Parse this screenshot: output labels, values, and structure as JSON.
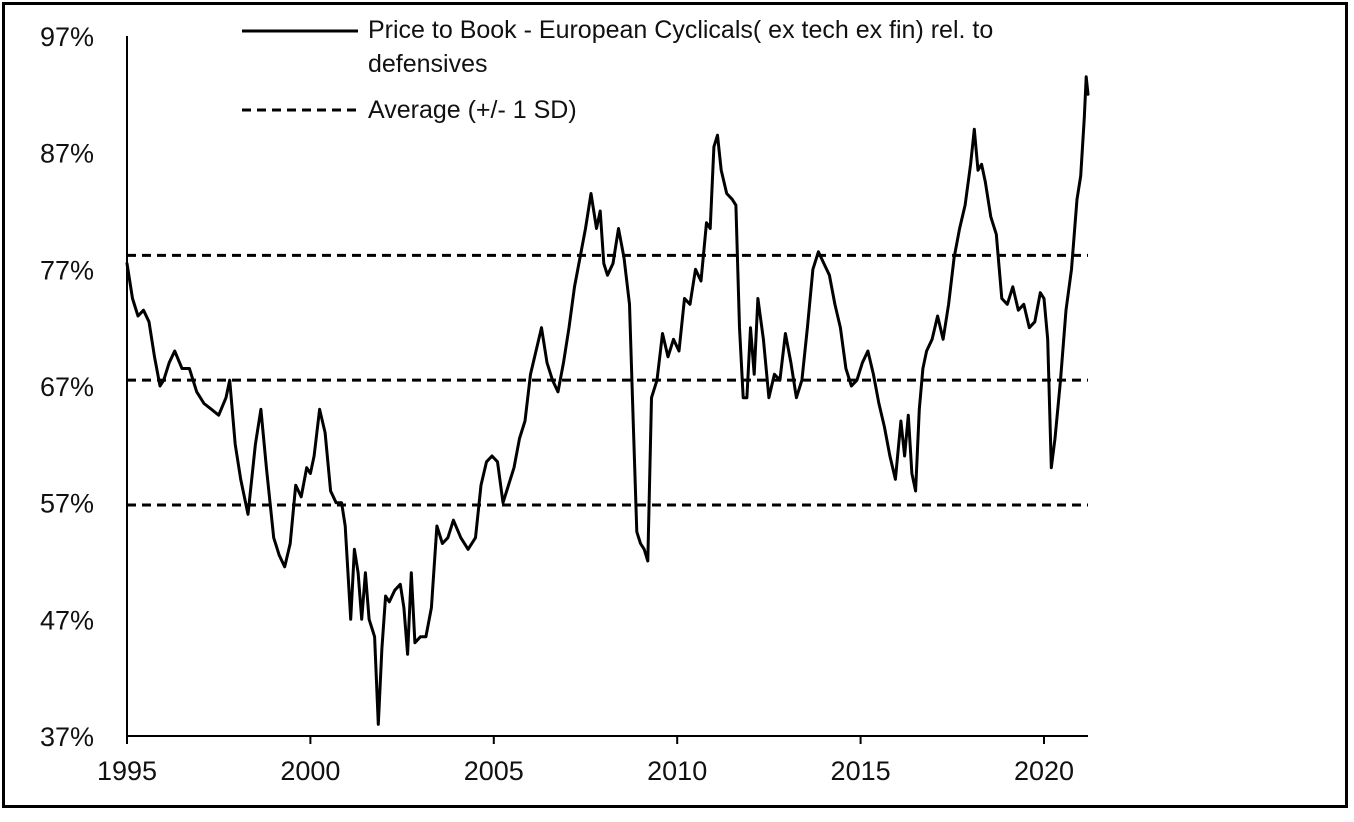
{
  "chart_data": {
    "type": "line",
    "title": "",
    "xlabel": "",
    "ylabel": "",
    "xlim": [
      1995,
      2021.2
    ],
    "ylim": [
      37,
      97
    ],
    "y_unit": "%",
    "x_ticks": [
      "1995",
      "2000",
      "2005",
      "2010",
      "2015",
      "2020"
    ],
    "y_ticks": [
      "37%",
      "47%",
      "57%",
      "67%",
      "77%",
      "87%",
      "97%"
    ],
    "grid": false,
    "legend_position": "top",
    "legend": [
      {
        "label_lines": [
          "Price to Book - European Cyclicals( ex tech ex fin) rel. to",
          "defensives"
        ],
        "style": "solid"
      },
      {
        "label_lines": [
          "Average (+/- 1 SD)"
        ],
        "style": "dashed"
      }
    ],
    "reference_lines": [
      {
        "name": "+1 SD",
        "y": 78.2
      },
      {
        "name": "Average",
        "y": 67.5
      },
      {
        "name": "-1 SD",
        "y": 56.8
      }
    ],
    "series": [
      {
        "name": "Price to Book - European Cyclicals( ex tech ex fin) rel. to defensives",
        "x": [
          1995.0,
          1995.15,
          1995.3,
          1995.45,
          1995.6,
          1995.75,
          1995.9,
          1996.0,
          1996.15,
          1996.3,
          1996.5,
          1996.7,
          1996.9,
          1997.1,
          1997.3,
          1997.5,
          1997.7,
          1997.8,
          1997.95,
          1998.1,
          1998.3,
          1998.5,
          1998.65,
          1998.8,
          1999.0,
          1999.15,
          1999.3,
          1999.45,
          1999.6,
          1999.75,
          1999.9,
          2000.0,
          2000.1,
          2000.25,
          2000.4,
          2000.55,
          2000.7,
          2000.85,
          2000.95,
          2001.1,
          2001.2,
          2001.3,
          2001.4,
          2001.5,
          2001.6,
          2001.7,
          2001.75,
          2001.85,
          2001.95,
          2002.05,
          2002.15,
          2002.3,
          2002.45,
          2002.55,
          2002.65,
          2002.75,
          2002.85,
          2003.0,
          2003.15,
          2003.3,
          2003.45,
          2003.6,
          2003.75,
          2003.9,
          2004.1,
          2004.3,
          2004.5,
          2004.65,
          2004.8,
          2004.95,
          2005.1,
          2005.25,
          2005.4,
          2005.55,
          2005.7,
          2005.85,
          2006.0,
          2006.15,
          2006.3,
          2006.45,
          2006.6,
          2006.75,
          2006.9,
          2007.05,
          2007.2,
          2007.35,
          2007.5,
          2007.65,
          2007.8,
          2007.9,
          2008.0,
          2008.1,
          2008.25,
          2008.4,
          2008.55,
          2008.7,
          2008.8,
          2008.9,
          2009.0,
          2009.1,
          2009.2,
          2009.3,
          2009.45,
          2009.6,
          2009.75,
          2009.9,
          2010.05,
          2010.2,
          2010.35,
          2010.5,
          2010.65,
          2010.8,
          2010.9,
          2011.0,
          2011.1,
          2011.2,
          2011.35,
          2011.5,
          2011.6,
          2011.7,
          2011.8,
          2011.9,
          2012.0,
          2012.1,
          2012.2,
          2012.35,
          2012.5,
          2012.65,
          2012.8,
          2012.95,
          2013.1,
          2013.25,
          2013.4,
          2013.55,
          2013.7,
          2013.85,
          2014.0,
          2014.15,
          2014.3,
          2014.45,
          2014.6,
          2014.75,
          2014.9,
          2015.05,
          2015.2,
          2015.35,
          2015.5,
          2015.65,
          2015.8,
          2015.95,
          2016.1,
          2016.2,
          2016.3,
          2016.4,
          2016.5,
          2016.6,
          2016.7,
          2016.8,
          2016.95,
          2017.1,
          2017.25,
          2017.4,
          2017.55,
          2017.7,
          2017.85,
          2018.0,
          2018.1,
          2018.2,
          2018.3,
          2018.4,
          2018.55,
          2018.7,
          2018.85,
          2019.0,
          2019.15,
          2019.3,
          2019.45,
          2019.6,
          2019.75,
          2019.9,
          2020.0,
          2020.1,
          2020.2,
          2020.3,
          2020.45,
          2020.6,
          2020.75,
          2020.9,
          2021.0,
          2021.1,
          2021.15,
          2021.2
        ],
        "y": [
          77.5,
          74.5,
          73.0,
          73.5,
          72.5,
          69.5,
          67.0,
          67.5,
          69.0,
          70.0,
          68.5,
          68.5,
          66.5,
          65.5,
          65.0,
          64.5,
          66.0,
          67.5,
          62.0,
          59.0,
          56.0,
          62.0,
          65.0,
          60.0,
          54.0,
          52.5,
          51.5,
          53.5,
          58.5,
          57.5,
          60.0,
          59.5,
          61.0,
          65.0,
          63.0,
          58.0,
          57.0,
          57.0,
          55.0,
          47.0,
          53.0,
          51.0,
          47.0,
          51.0,
          47.0,
          46.0,
          45.5,
          38.0,
          44.5,
          49.0,
          48.5,
          49.5,
          50.0,
          48.0,
          44.0,
          51.0,
          45.0,
          45.5,
          45.5,
          48.0,
          55.0,
          53.5,
          54.0,
          55.5,
          54.0,
          53.0,
          54.0,
          58.5,
          60.5,
          61.0,
          60.5,
          57.0,
          58.5,
          60.0,
          62.5,
          64.0,
          68.0,
          70.0,
          72.0,
          69.0,
          67.5,
          66.5,
          69.0,
          72.0,
          75.5,
          78.0,
          80.5,
          83.5,
          80.5,
          82.0,
          77.5,
          76.5,
          77.5,
          80.5,
          78.0,
          74.0,
          64.0,
          54.5,
          53.5,
          53.0,
          52.0,
          66.0,
          67.5,
          71.5,
          69.5,
          71.0,
          70.0,
          74.5,
          74.0,
          77.0,
          76.0,
          81.0,
          80.5,
          87.5,
          88.5,
          85.5,
          83.5,
          83.0,
          82.5,
          72.0,
          66.0,
          66.0,
          72.0,
          68.0,
          74.5,
          71.0,
          66.0,
          68.0,
          67.5,
          71.5,
          69.0,
          66.0,
          67.5,
          72.0,
          77.0,
          78.5,
          77.5,
          76.5,
          74.0,
          72.0,
          68.5,
          67.0,
          67.5,
          69.0,
          70.0,
          68.0,
          65.5,
          63.5,
          61.0,
          59.0,
          64.0,
          61.0,
          64.5,
          59.5,
          58.0,
          65.0,
          68.5,
          70.0,
          71.0,
          73.0,
          71.0,
          74.0,
          78.0,
          80.5,
          82.5,
          86.0,
          89.0,
          85.5,
          86.0,
          84.5,
          81.5,
          80.0,
          74.5,
          74.0,
          75.5,
          73.5,
          74.0,
          72.0,
          72.5,
          75.0,
          74.5,
          71.0,
          60.0,
          62.5,
          67.5,
          73.5,
          77.0,
          83.0,
          85.0,
          90.0,
          93.5,
          92.0
        ]
      }
    ]
  }
}
